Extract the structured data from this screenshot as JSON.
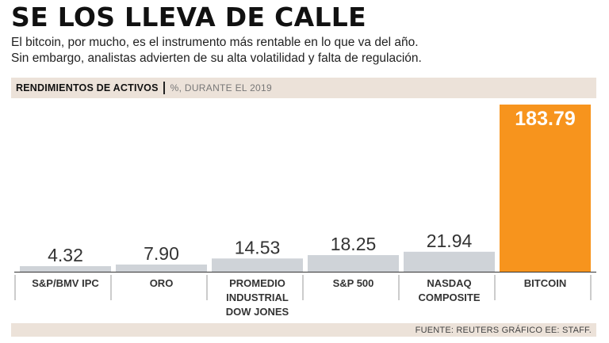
{
  "header": {
    "title": "SE LOS LLEVA DE CALLE",
    "subtitle_line1": "El bitcoin, por mucho, es el instrumento más rentable en lo que va del año.",
    "subtitle_line2": "Sin embargo, analistas advierten de su alta volatilidad y falta de regulación."
  },
  "band": {
    "section": "RENDIMIENTOS DE ACTIVOS",
    "unit": "%, DURANTE EL 2019"
  },
  "footer": {
    "source": "FUENTE: REUTERS GRÁFICO EE: STAFF."
  },
  "colors": {
    "bar": "#cfd3d8",
    "highlight": "#f7941d",
    "band": "#ece2d9"
  },
  "chart_data": {
    "type": "bar",
    "title": "RENDIMIENTOS DE ACTIVOS",
    "ylabel": "%, DURANTE EL 2019",
    "categories": [
      [
        "S&P/BMV IPC"
      ],
      [
        "ORO"
      ],
      [
        "PROMEDIO",
        "INDUSTRIAL",
        "DOW JONES"
      ],
      [
        "S&P 500"
      ],
      [
        "NASDAQ",
        "COMPOSITE"
      ],
      [
        "BITCOIN"
      ]
    ],
    "values": [
      4.32,
      7.9,
      14.53,
      18.25,
      21.94,
      183.79
    ],
    "labels": [
      "4.32",
      "7.90",
      "14.53",
      "18.25",
      "21.94",
      "183.79"
    ],
    "highlight_index": 5,
    "ylim": [
      0,
      183.79
    ]
  }
}
